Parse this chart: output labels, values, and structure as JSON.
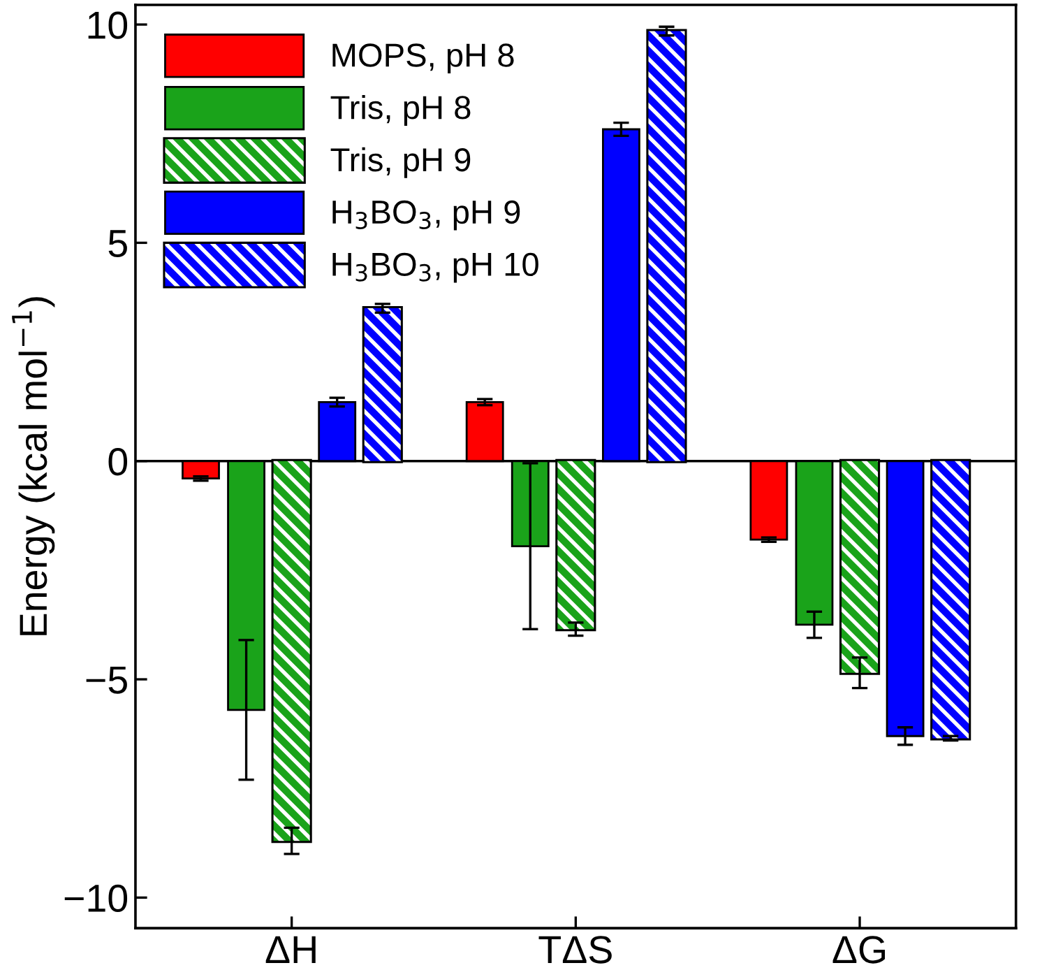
{
  "chart_data": {
    "type": "bar",
    "ylabel": "Energy (kcal mol$^{−1}$)",
    "categories": [
      "ΔH",
      "TΔS",
      "ΔG"
    ],
    "series": [
      {
        "name": "MOPS, pH 8",
        "color": "#ff0000",
        "values": [
          -0.4,
          1.35,
          -1.8
        ],
        "errors": [
          0.05,
          0.07,
          0.05
        ]
      },
      {
        "name": "Tris, pH 8",
        "color": "#1aa31a",
        "values": [
          -5.7,
          -1.95,
          -3.75
        ],
        "errors": [
          1.6,
          1.9,
          0.3
        ]
      },
      {
        "name": "Tris, pH 9",
        "color": "#1aa31a",
        "values": [
          -8.7,
          -3.85,
          -4.85
        ],
        "errors": [
          0.3,
          0.15,
          0.35
        ]
      },
      {
        "name": "H$_{3}$BO$_{3}$, pH 9",
        "color": "#0000ff",
        "values": [
          1.35,
          7.6,
          -6.3
        ],
        "errors": [
          0.1,
          0.15,
          0.2
        ]
      },
      {
        "name": "H$_{3}$BO$_{3}$, pH 10",
        "color": "#0000ff",
        "values": [
          3.5,
          9.85,
          -6.35
        ],
        "errors": [
          0.1,
          0.1,
          0.05
        ]
      }
    ],
    "ylim": [
      -10.7,
      10.45
    ],
    "yticks": [
      {
        "value": -10,
        "label": "−10"
      },
      {
        "value": -5,
        "label": "−5"
      },
      0,
      5,
      10
    ],
    "ref_lines": [
      {
        "axis": "y",
        "value": 0,
        "color": "#000000"
      }
    ],
    "legend": "top left",
    "grid": false
  }
}
